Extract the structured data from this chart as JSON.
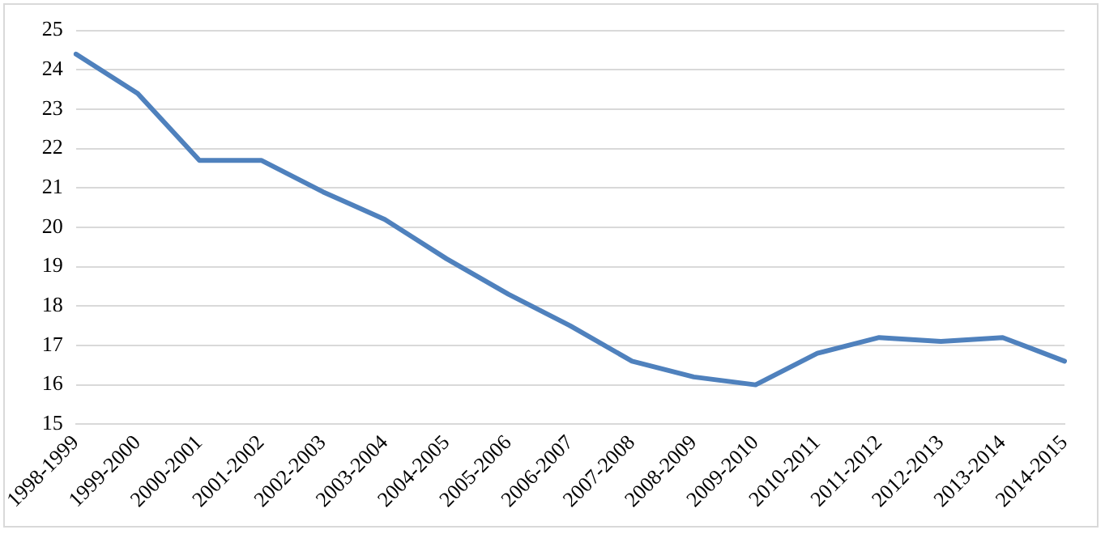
{
  "chart_data": {
    "type": "line",
    "categories": [
      "1998-1999",
      "1999-2000",
      "2000-2001",
      "2001-2002",
      "2002-2003",
      "2003-2004",
      "2004-2005",
      "2005-2006",
      "2006-2007",
      "2007-2008",
      "2008-2009",
      "2009-2010",
      "2010-2011",
      "2011-2012",
      "2012-2013",
      "2013-2014",
      "2014-2015"
    ],
    "series": [
      {
        "color": "#4f81bd",
        "values": [
          24.4,
          23.4,
          21.7,
          21.7,
          20.9,
          20.2,
          19.2,
          18.3,
          17.5,
          16.6,
          16.2,
          16.0,
          16.8,
          17.2,
          17.1,
          17.2,
          16.6
        ]
      }
    ],
    "ylim": [
      15,
      25
    ],
    "yticks": [
      15,
      16,
      17,
      18,
      19,
      20,
      21,
      22,
      23,
      24,
      25
    ],
    "grid": "y",
    "legend": false,
    "marker": "none",
    "line_style": "solid"
  }
}
